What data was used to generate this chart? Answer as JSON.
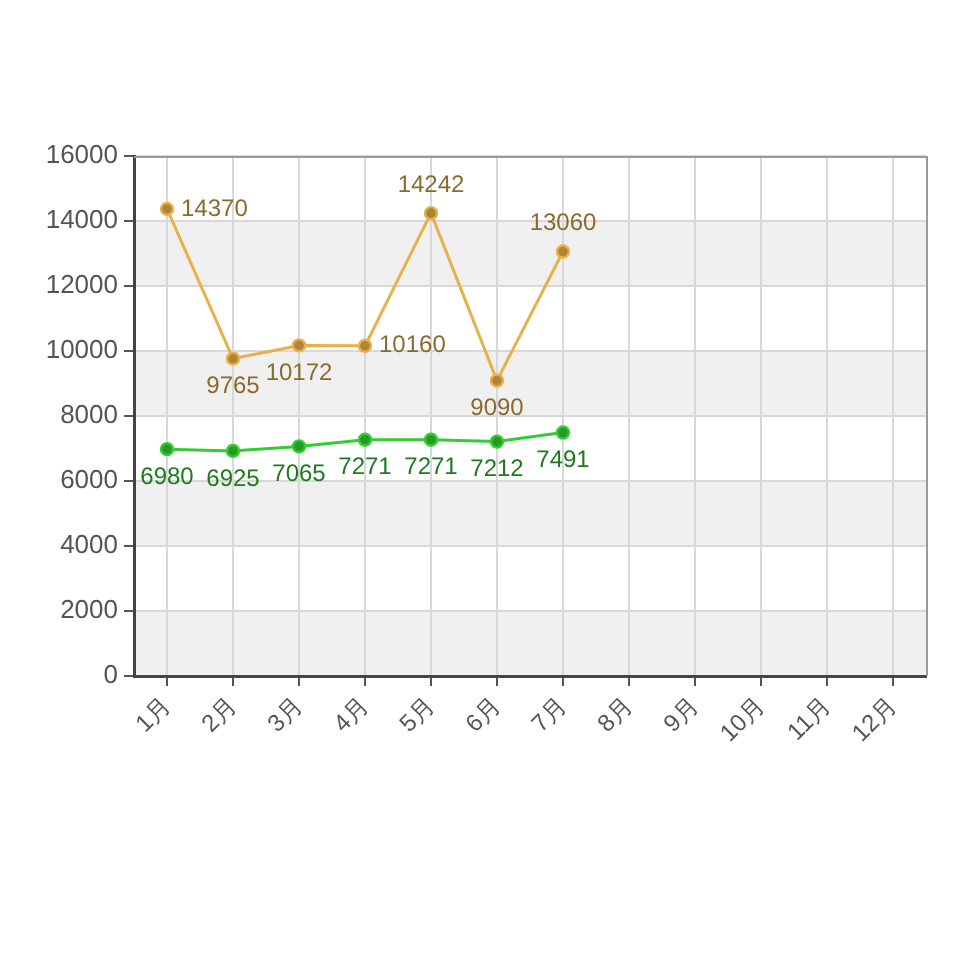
{
  "chart_data": {
    "type": "line",
    "categories": [
      "1月",
      "2月",
      "3月",
      "4月",
      "5月",
      "6月",
      "7月",
      "8月",
      "9月",
      "10月",
      "11月",
      "12月"
    ],
    "series": [
      {
        "color": "#e8b04a",
        "values": [
          14370,
          9765,
          10172,
          10160,
          14242,
          9090,
          13060,
          null,
          null,
          null,
          null,
          null
        ]
      },
      {
        "color": "#33cc33",
        "values": [
          6980,
          6925,
          7065,
          7271,
          7271,
          7212,
          7491,
          null,
          null,
          null,
          null,
          null
        ]
      }
    ],
    "ylim": [
      0,
      16000
    ],
    "yticks": [
      0,
      2000,
      4000,
      6000,
      8000,
      10000,
      12000,
      14000,
      16000
    ],
    "grid": true,
    "legend": false,
    "marker": "circle",
    "line_style": "solid",
    "data_labels": true
  }
}
